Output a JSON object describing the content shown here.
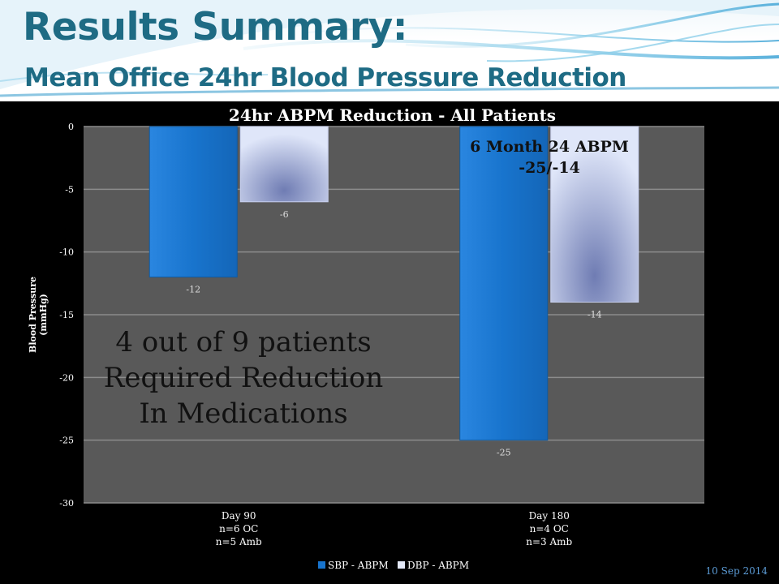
{
  "slide": {
    "title": "Results Summary:",
    "subtitle": "Mean Office 24hr Blood Pressure Reduction",
    "date": "10 Sep 2014"
  },
  "annotations": {
    "main_note": [
      "4 out of 9 patients",
      "Required Reduction",
      "In Medications"
    ],
    "six_month_note": [
      "6 Month 24 ABPM",
      "-25/-14"
    ]
  },
  "colors": {
    "title": "#1e6b84",
    "plot_bg": "#595959",
    "sbp": "#1874cd",
    "dbp_light": "#dfe6f9",
    "dbp_dark": "#6f7cb3"
  },
  "chart_data": {
    "type": "bar",
    "title": "24hr ABPM Reduction - All Patients",
    "ylabel": [
      "Blood Pressure",
      "(mmHg)"
    ],
    "xlabel": "",
    "ylim": [
      -30,
      0
    ],
    "yticks": [
      0,
      -5,
      -10,
      -15,
      -20,
      -25,
      -30
    ],
    "grid": true,
    "legend_position": "bottom",
    "categories": [
      [
        "Day 90",
        "n=6 OC",
        "n=5 Amb"
      ],
      [
        "Day 180",
        "n=4 OC",
        "n=3 Amb"
      ]
    ],
    "series": [
      {
        "name": "SBP - ABPM",
        "values": [
          -12,
          -25
        ]
      },
      {
        "name": "DBP - ABPM",
        "values": [
          -6,
          -14
        ]
      }
    ],
    "data_labels": [
      [
        "-12",
        "-25"
      ],
      [
        "-6",
        "-14"
      ]
    ]
  }
}
